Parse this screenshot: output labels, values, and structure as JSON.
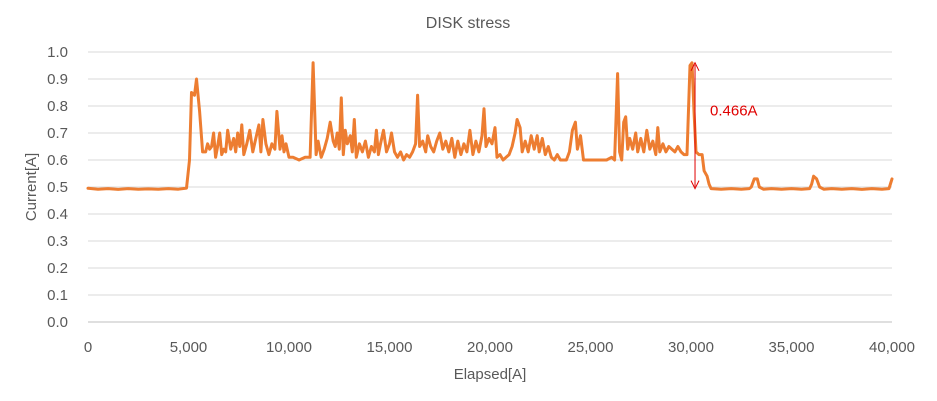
{
  "chart_data": {
    "type": "line",
    "title": "DISK stress",
    "xlabel": "Elapsed[A]",
    "ylabel": "Current[A]",
    "xlim": [
      0,
      40000
    ],
    "ylim": [
      0,
      1.0
    ],
    "x_ticks": [
      "0",
      "5,000",
      "10,000",
      "15,000",
      "20,000",
      "25,000",
      "30,000",
      "35,000",
      "40,000"
    ],
    "y_ticks": [
      "0.0",
      "0.1",
      "0.2",
      "0.3",
      "0.4",
      "0.5",
      "0.6",
      "0.7",
      "0.8",
      "0.9",
      "1.0"
    ],
    "grid": "horizontal",
    "legend": "none",
    "series_color": "#ED7D31",
    "annotation_color": "#E00000",
    "annotation": {
      "text": "0.466A",
      "from": [
        30200,
        0.96
      ],
      "to": [
        30200,
        0.494
      ]
    },
    "series": [
      {
        "values": [
          [
            0,
            0.495
          ],
          [
            500,
            0.492
          ],
          [
            1000,
            0.494
          ],
          [
            1500,
            0.491
          ],
          [
            2000,
            0.494
          ],
          [
            2500,
            0.492
          ],
          [
            3000,
            0.493
          ],
          [
            3500,
            0.492
          ],
          [
            4000,
            0.494
          ],
          [
            4500,
            0.492
          ],
          [
            4900,
            0.496
          ],
          [
            5050,
            0.6
          ],
          [
            5150,
            0.85
          ],
          [
            5300,
            0.84
          ],
          [
            5400,
            0.9
          ],
          [
            5550,
            0.78
          ],
          [
            5700,
            0.63
          ],
          [
            5850,
            0.63
          ],
          [
            5950,
            0.66
          ],
          [
            6050,
            0.64
          ],
          [
            6150,
            0.65
          ],
          [
            6250,
            0.7
          ],
          [
            6350,
            0.61
          ],
          [
            6450,
            0.65
          ],
          [
            6550,
            0.7
          ],
          [
            6650,
            0.62
          ],
          [
            6750,
            0.64
          ],
          [
            6850,
            0.63
          ],
          [
            6950,
            0.71
          ],
          [
            7100,
            0.64
          ],
          [
            7250,
            0.68
          ],
          [
            7350,
            0.63
          ],
          [
            7450,
            0.7
          ],
          [
            7550,
            0.65
          ],
          [
            7650,
            0.73
          ],
          [
            7750,
            0.62
          ],
          [
            7900,
            0.66
          ],
          [
            8050,
            0.71
          ],
          [
            8200,
            0.63
          ],
          [
            8350,
            0.68
          ],
          [
            8500,
            0.73
          ],
          [
            8600,
            0.63
          ],
          [
            8700,
            0.75
          ],
          [
            8850,
            0.66
          ],
          [
            9000,
            0.62
          ],
          [
            9150,
            0.66
          ],
          [
            9300,
            0.64
          ],
          [
            9400,
            0.78
          ],
          [
            9550,
            0.64
          ],
          [
            9650,
            0.69
          ],
          [
            9750,
            0.63
          ],
          [
            9850,
            0.66
          ],
          [
            10000,
            0.61
          ],
          [
            10200,
            0.61
          ],
          [
            10500,
            0.6
          ],
          [
            10800,
            0.61
          ],
          [
            11050,
            0.61
          ],
          [
            11200,
            0.96
          ],
          [
            11350,
            0.62
          ],
          [
            11450,
            0.67
          ],
          [
            11600,
            0.61
          ],
          [
            11750,
            0.64
          ],
          [
            11900,
            0.68
          ],
          [
            12050,
            0.74
          ],
          [
            12200,
            0.67
          ],
          [
            12300,
            0.65
          ],
          [
            12400,
            0.7
          ],
          [
            12500,
            0.64
          ],
          [
            12600,
            0.83
          ],
          [
            12700,
            0.62
          ],
          [
            12800,
            0.71
          ],
          [
            12900,
            0.66
          ],
          [
            13050,
            0.69
          ],
          [
            13150,
            0.63
          ],
          [
            13250,
            0.75
          ],
          [
            13350,
            0.61
          ],
          [
            13500,
            0.66
          ],
          [
            13650,
            0.63
          ],
          [
            13800,
            0.67
          ],
          [
            13950,
            0.61
          ],
          [
            14100,
            0.65
          ],
          [
            14250,
            0.63
          ],
          [
            14350,
            0.71
          ],
          [
            14450,
            0.62
          ],
          [
            14550,
            0.66
          ],
          [
            14700,
            0.71
          ],
          [
            14850,
            0.63
          ],
          [
            15000,
            0.66
          ],
          [
            15100,
            0.7
          ],
          [
            15250,
            0.63
          ],
          [
            15400,
            0.61
          ],
          [
            15550,
            0.63
          ],
          [
            15700,
            0.6
          ],
          [
            15850,
            0.62
          ],
          [
            16000,
            0.61
          ],
          [
            16150,
            0.63
          ],
          [
            16300,
            0.66
          ],
          [
            16400,
            0.84
          ],
          [
            16500,
            0.65
          ],
          [
            16650,
            0.67
          ],
          [
            16800,
            0.63
          ],
          [
            16900,
            0.69
          ],
          [
            17050,
            0.65
          ],
          [
            17200,
            0.63
          ],
          [
            17350,
            0.67
          ],
          [
            17500,
            0.7
          ],
          [
            17650,
            0.64
          ],
          [
            17800,
            0.67
          ],
          [
            17950,
            0.63
          ],
          [
            18100,
            0.68
          ],
          [
            18250,
            0.61
          ],
          [
            18400,
            0.67
          ],
          [
            18550,
            0.62
          ],
          [
            18700,
            0.66
          ],
          [
            18850,
            0.63
          ],
          [
            19000,
            0.71
          ],
          [
            19150,
            0.62
          ],
          [
            19300,
            0.67
          ],
          [
            19450,
            0.63
          ],
          [
            19600,
            0.69
          ],
          [
            19700,
            0.79
          ],
          [
            19800,
            0.65
          ],
          [
            19950,
            0.68
          ],
          [
            20100,
            0.66
          ],
          [
            20250,
            0.72
          ],
          [
            20350,
            0.61
          ],
          [
            20500,
            0.62
          ],
          [
            20650,
            0.6
          ],
          [
            20800,
            0.61
          ],
          [
            20950,
            0.62
          ],
          [
            21100,
            0.65
          ],
          [
            21250,
            0.7
          ],
          [
            21350,
            0.75
          ],
          [
            21500,
            0.72
          ],
          [
            21600,
            0.63
          ],
          [
            21750,
            0.67
          ],
          [
            21900,
            0.63
          ],
          [
            22050,
            0.69
          ],
          [
            22200,
            0.64
          ],
          [
            22350,
            0.69
          ],
          [
            22450,
            0.63
          ],
          [
            22600,
            0.68
          ],
          [
            22750,
            0.62
          ],
          [
            22900,
            0.65
          ],
          [
            23050,
            0.61
          ],
          [
            23200,
            0.6
          ],
          [
            23350,
            0.62
          ],
          [
            23500,
            0.6
          ],
          [
            23650,
            0.6
          ],
          [
            23800,
            0.6
          ],
          [
            23950,
            0.63
          ],
          [
            24100,
            0.71
          ],
          [
            24250,
            0.74
          ],
          [
            24350,
            0.64
          ],
          [
            24500,
            0.69
          ],
          [
            24650,
            0.6
          ],
          [
            24800,
            0.6
          ],
          [
            25050,
            0.6
          ],
          [
            25300,
            0.6
          ],
          [
            25550,
            0.6
          ],
          [
            25800,
            0.6
          ],
          [
            26050,
            0.61
          ],
          [
            26200,
            0.6
          ],
          [
            26350,
            0.92
          ],
          [
            26450,
            0.63
          ],
          [
            26550,
            0.6
          ],
          [
            26650,
            0.74
          ],
          [
            26750,
            0.76
          ],
          [
            26850,
            0.64
          ],
          [
            26950,
            0.68
          ],
          [
            27100,
            0.64
          ],
          [
            27250,
            0.7
          ],
          [
            27350,
            0.63
          ],
          [
            27500,
            0.68
          ],
          [
            27650,
            0.63
          ],
          [
            27800,
            0.71
          ],
          [
            27950,
            0.64
          ],
          [
            28100,
            0.67
          ],
          [
            28250,
            0.62
          ],
          [
            28350,
            0.72
          ],
          [
            28450,
            0.63
          ],
          [
            28600,
            0.66
          ],
          [
            28750,
            0.63
          ],
          [
            28900,
            0.65
          ],
          [
            29050,
            0.64
          ],
          [
            29200,
            0.63
          ],
          [
            29350,
            0.65
          ],
          [
            29500,
            0.63
          ],
          [
            29650,
            0.62
          ],
          [
            29800,
            0.62
          ],
          [
            29950,
            0.95
          ],
          [
            30050,
            0.96
          ],
          [
            30150,
            0.78
          ],
          [
            30250,
            0.63
          ],
          [
            30400,
            0.62
          ],
          [
            30550,
            0.62
          ],
          [
            30650,
            0.56
          ],
          [
            30800,
            0.54
          ],
          [
            30900,
            0.51
          ],
          [
            31000,
            0.494
          ],
          [
            31500,
            0.492
          ],
          [
            32000,
            0.494
          ],
          [
            32500,
            0.492
          ],
          [
            32900,
            0.494
          ],
          [
            33000,
            0.5
          ],
          [
            33150,
            0.53
          ],
          [
            33300,
            0.53
          ],
          [
            33400,
            0.5
          ],
          [
            33600,
            0.492
          ],
          [
            34000,
            0.494
          ],
          [
            34500,
            0.492
          ],
          [
            35000,
            0.494
          ],
          [
            35500,
            0.492
          ],
          [
            35900,
            0.494
          ],
          [
            36000,
            0.51
          ],
          [
            36100,
            0.54
          ],
          [
            36250,
            0.53
          ],
          [
            36400,
            0.5
          ],
          [
            36600,
            0.492
          ],
          [
            37000,
            0.494
          ],
          [
            37500,
            0.492
          ],
          [
            38000,
            0.494
          ],
          [
            38500,
            0.491
          ],
          [
            39000,
            0.494
          ],
          [
            39500,
            0.492
          ],
          [
            39850,
            0.494
          ],
          [
            40000,
            0.53
          ]
        ]
      }
    ]
  }
}
